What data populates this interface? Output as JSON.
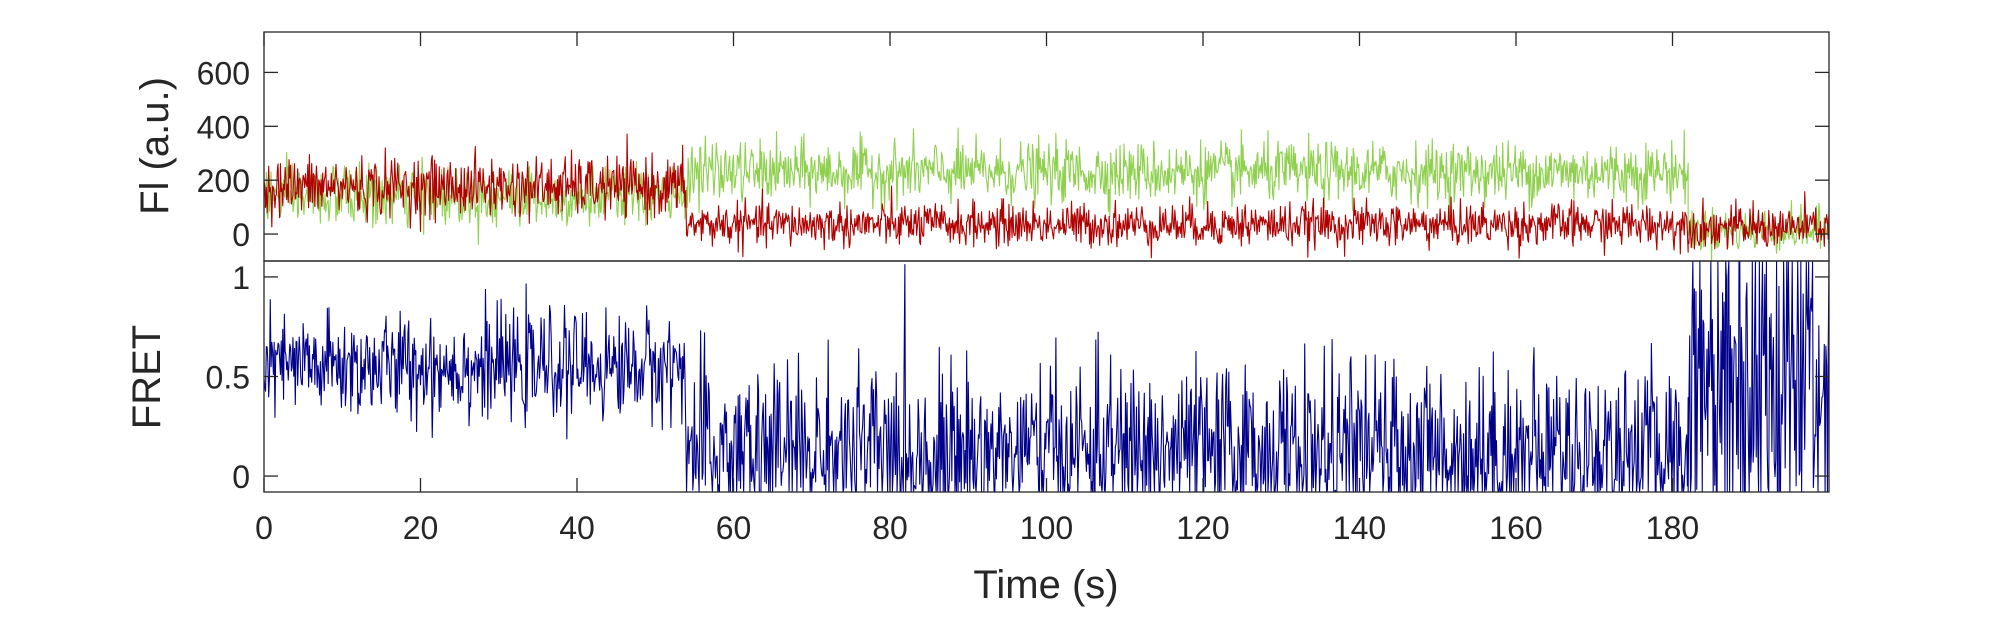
{
  "colors": {
    "donor": "#8fd14f",
    "acceptor": "#b00000",
    "fret": "#00008b",
    "axis": "#262626"
  },
  "chart_data": [
    {
      "type": "line",
      "title": "",
      "xlabel": "",
      "ylabel": "Fl (a.u.)",
      "xlim": [
        0,
        200
      ],
      "ylim": [
        -100,
        750
      ],
      "y_ticks": [
        "0",
        "200",
        "400",
        "600"
      ],
      "y_tick_values": [
        0,
        200,
        400,
        600
      ],
      "grid": false,
      "sampling_interval_s": 0.1,
      "series": [
        {
          "key": "donor",
          "color": "#8fd14f",
          "segments": [
            {
              "x_start": 0,
              "x_end": 54,
              "mean": 140,
              "noise": 55
            },
            {
              "x_start": 54,
              "x_end": 182,
              "mean": 230,
              "noise": 55
            },
            {
              "x_start": 182,
              "x_end": 200,
              "mean": 15,
              "noise": 40
            }
          ],
          "peak": 430
        },
        {
          "key": "acceptor",
          "color": "#b00000",
          "segments": [
            {
              "x_start": 0,
              "x_end": 54,
              "mean": 175,
              "noise": 55
            },
            {
              "x_start": 54,
              "x_end": 182,
              "mean": 35,
              "noise": 40
            },
            {
              "x_start": 182,
              "x_end": 200,
              "mean": 25,
              "noise": 40
            }
          ],
          "peak": 440
        }
      ]
    },
    {
      "type": "line",
      "title": "",
      "xlabel": "Time (s)",
      "ylabel": "FRET",
      "xlim": [
        0,
        200
      ],
      "ylim": [
        -0.08,
        1.08
      ],
      "x_ticks": [
        "0",
        "20",
        "40",
        "60",
        "80",
        "100",
        "120",
        "140",
        "160",
        "180"
      ],
      "x_tick_values": [
        0,
        20,
        40,
        60,
        80,
        100,
        120,
        140,
        160,
        180
      ],
      "y_ticks": [
        "0",
        "0.5",
        "1"
      ],
      "y_tick_values": [
        0,
        0.5,
        1
      ],
      "grid": false,
      "sampling_interval_s": 0.1,
      "series": [
        {
          "key": "fret",
          "color": "#00008b",
          "segments": [
            {
              "x_start": 0,
              "x_end": 54,
              "mean": 0.55,
              "noise": 0.13
            },
            {
              "x_start": 54,
              "x_end": 182,
              "mean": 0.12,
              "noise": 0.22
            },
            {
              "x_start": 182,
              "x_end": 200,
              "mean": 0.55,
              "noise": 0.55
            }
          ],
          "clipped_to_ylim": true
        }
      ]
    }
  ]
}
